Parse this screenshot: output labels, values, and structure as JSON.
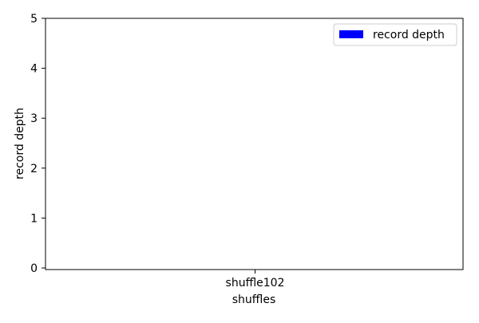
{
  "chart_data": {
    "type": "bar",
    "categories": [
      "shuffle102"
    ],
    "series": [
      {
        "name": "record depth",
        "values": [
          0
        ],
        "color": "#0000ff"
      }
    ],
    "xlabel": "shuffles",
    "ylabel": "record depth",
    "ylim": [
      0,
      5
    ],
    "yticks": [
      "0",
      "1",
      "2",
      "3",
      "4",
      "5"
    ],
    "grid": false,
    "legend_placement": "top-right"
  }
}
